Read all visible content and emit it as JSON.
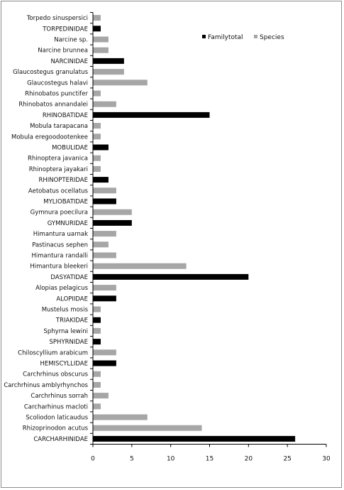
{
  "chart_data": {
    "type": "bar",
    "orientation": "horizontal",
    "categories": [
      "CARCHARHINIDAE",
      "Rhizoprinodon acutus",
      "Scoliodon laticaudus",
      "Carcharhinus macloti",
      "Carchrhinus sorrah",
      "Carchrhinus amblyrhynchos",
      "Carchrhinus obscurus",
      "HEMISCYLLIDAE",
      "Chiloscyllium arabicum",
      "SPHYRNIDAE",
      "Sphyrna lewini",
      "TRIAKIDAE",
      "Mustelus mosis",
      "ALOPIIDAE",
      "Alopias pelagicus",
      "DASYATIDAE",
      "Himantura bleekeri",
      "Himantura randalli",
      "Pastinacus sephen",
      "Himantura uarnak",
      "GYMNURIDAE",
      "Gymnura poecilura",
      "MYLIOBATIDAE",
      "Aetobatus ocellatus",
      "RHINOPTERIDAE",
      "Rhinoptera jayakari",
      "Rhinoptera javanica",
      "MOBULIDAE",
      "Mobula eregoodootenkee",
      "Mobula tarapacana",
      "RHINOBATIDAE",
      "Rhinobatos annandalei",
      "Rhinobatos punctifer",
      "Glaucostegus halavi",
      "Glaucostegus granulatus",
      "NARCINIDAE",
      "Narcine brunnea",
      "Narcine sp.",
      "TORPEDINIDAE",
      "Torpedo sinuspersici"
    ],
    "series": [
      {
        "name": "Familytotal",
        "color": "#000000",
        "values": [
          26,
          null,
          null,
          null,
          null,
          null,
          null,
          3,
          null,
          1,
          null,
          1,
          null,
          3,
          null,
          20,
          null,
          null,
          null,
          null,
          5,
          null,
          3,
          null,
          2,
          null,
          null,
          2,
          null,
          null,
          15,
          null,
          null,
          null,
          null,
          4,
          null,
          null,
          1,
          null
        ]
      },
      {
        "name": "Species",
        "color": "#a6a6a6",
        "values": [
          null,
          14,
          7,
          1,
          2,
          1,
          1,
          null,
          3,
          null,
          1,
          null,
          1,
          null,
          3,
          null,
          12,
          3,
          2,
          3,
          null,
          5,
          null,
          3,
          null,
          1,
          1,
          null,
          1,
          1,
          null,
          3,
          1,
          7,
          4,
          null,
          2,
          2,
          null,
          1
        ]
      }
    ],
    "xlim": [
      0,
      30
    ],
    "xticks": [
      "0",
      "5",
      "10",
      "15",
      "20",
      "25",
      "30"
    ],
    "xlabel": "",
    "ylabel": "",
    "title": "",
    "grid": false,
    "legend": {
      "placement": "top-right",
      "entries": [
        "Familytotal",
        "Species"
      ]
    }
  }
}
